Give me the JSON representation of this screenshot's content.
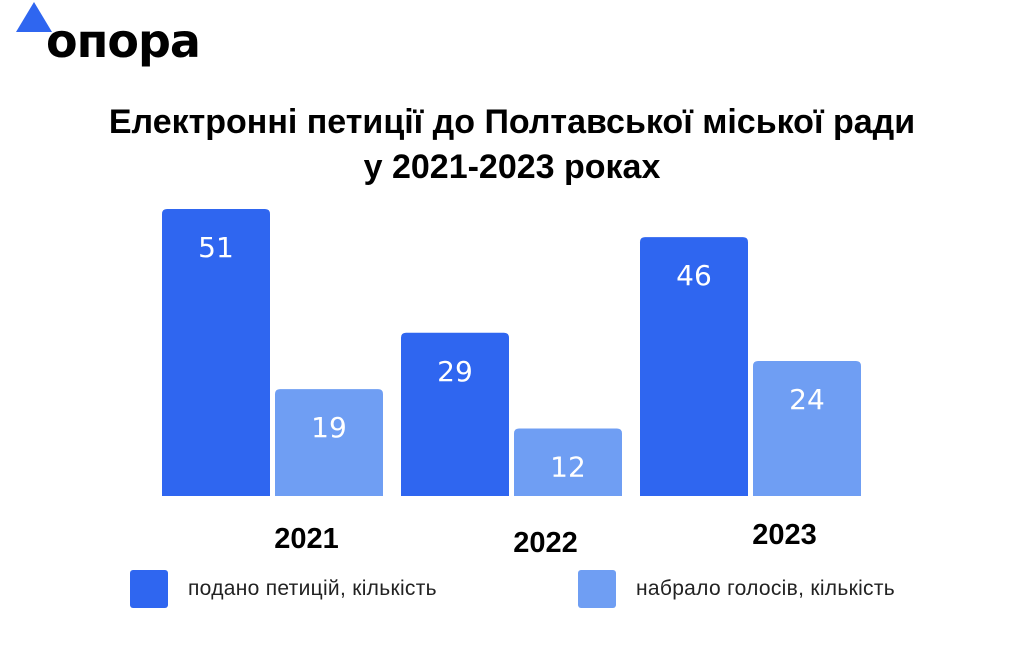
{
  "logo": {
    "text": "опора",
    "mark": "triangle-icon"
  },
  "title": {
    "line1": "Електронні петиції до Полтавської міської ради",
    "line2": "у 2021-2023 роках"
  },
  "colors": {
    "primary": "#2f66f0",
    "secondary": "#6f9ef3"
  },
  "legend": [
    {
      "label": "подано петицій, кількість",
      "color": "#2f66f0"
    },
    {
      "label": "набрало голосів, кількість",
      "color": "#6f9ef3"
    }
  ],
  "chart_data": {
    "type": "bar",
    "categories": [
      "2021",
      "2022",
      "2023"
    ],
    "series": [
      {
        "name": "подано петицій, кількість",
        "values": [
          51,
          29,
          46
        ]
      },
      {
        "name": "набрало голосів, кількість",
        "values": [
          19,
          12,
          24
        ]
      }
    ],
    "ylim": [
      0,
      51
    ],
    "grid": false,
    "legend_position": "bottom"
  }
}
